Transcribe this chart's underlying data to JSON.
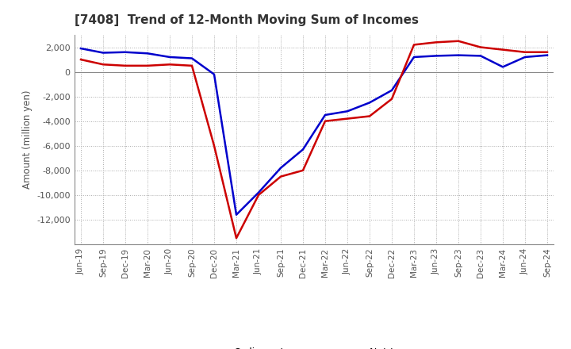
{
  "title": "[7408]  Trend of 12-Month Moving Sum of Incomes",
  "ylabel": "Amount (million yen)",
  "ylim": [
    -14000,
    3000
  ],
  "yticks": [
    2000,
    0,
    -2000,
    -4000,
    -6000,
    -8000,
    -10000,
    -12000
  ],
  "plot_bg": "#ffffff",
  "fig_bg": "#ffffff",
  "grid_color": "#aaaaaa",
  "x_labels": [
    "Jun-19",
    "Sep-19",
    "Dec-19",
    "Mar-20",
    "Jun-20",
    "Sep-20",
    "Dec-20",
    "Mar-21",
    "Jun-21",
    "Sep-21",
    "Dec-21",
    "Mar-22",
    "Jun-22",
    "Sep-22",
    "Dec-22",
    "Mar-23",
    "Jun-23",
    "Sep-23",
    "Dec-23",
    "Mar-24",
    "Jun-24",
    "Sep-24"
  ],
  "ordinary_income": [
    1900,
    1550,
    1600,
    1500,
    1200,
    1100,
    -200,
    -11600,
    -9800,
    -7800,
    -6300,
    -3500,
    -3200,
    -2500,
    -1500,
    1200,
    1300,
    1350,
    1300,
    400,
    1200,
    1350
  ],
  "net_income": [
    1000,
    600,
    500,
    500,
    600,
    500,
    -6000,
    -13500,
    -10000,
    -8500,
    -8000,
    -4000,
    -3800,
    -3600,
    -2200,
    2200,
    2400,
    2500,
    2000,
    1800,
    1600,
    1600
  ],
  "ordinary_color": "#0000cc",
  "net_color": "#cc0000",
  "line_width": 1.8
}
